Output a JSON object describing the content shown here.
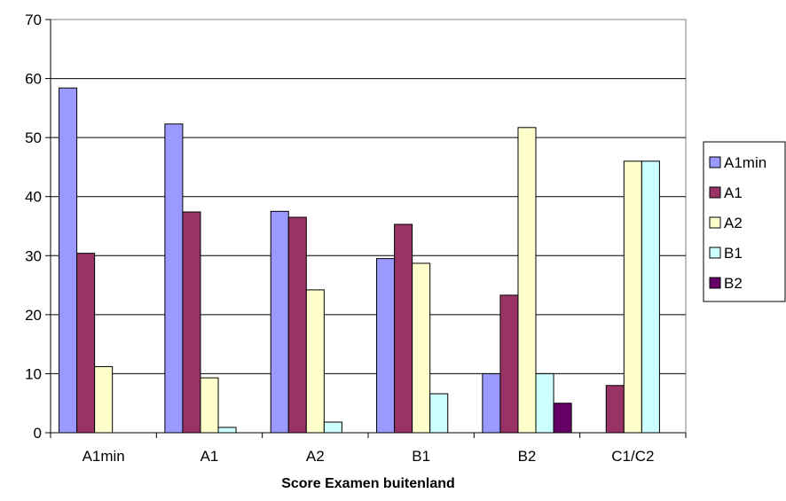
{
  "chart_data": {
    "type": "bar",
    "title": "",
    "xlabel": "Score Examen buitenland",
    "ylabel": "",
    "ylim": [
      0,
      70
    ],
    "yticks": [
      0,
      10,
      20,
      30,
      40,
      50,
      60,
      70
    ],
    "grid": true,
    "legend_position": "right",
    "categories": [
      "A1min",
      "A1",
      "A2",
      "B1",
      "B2",
      "C1/C2"
    ],
    "series": [
      {
        "name": "A1min",
        "color": "#9999FF",
        "values": [
          58.4,
          52.3,
          37.5,
          29.5,
          10,
          0
        ]
      },
      {
        "name": "A1",
        "color": "#993366",
        "values": [
          30.4,
          37.4,
          36.5,
          35.3,
          23.3,
          8
        ]
      },
      {
        "name": "A2",
        "color": "#FFFFCC",
        "values": [
          11.2,
          9.3,
          24.2,
          28.7,
          51.7,
          46
        ]
      },
      {
        "name": "B1",
        "color": "#CCFFFF",
        "values": [
          0,
          0.9,
          1.8,
          6.6,
          10,
          46
        ]
      },
      {
        "name": "B2",
        "color": "#660066",
        "values": [
          0,
          0,
          0,
          0,
          5,
          0
        ]
      }
    ]
  }
}
